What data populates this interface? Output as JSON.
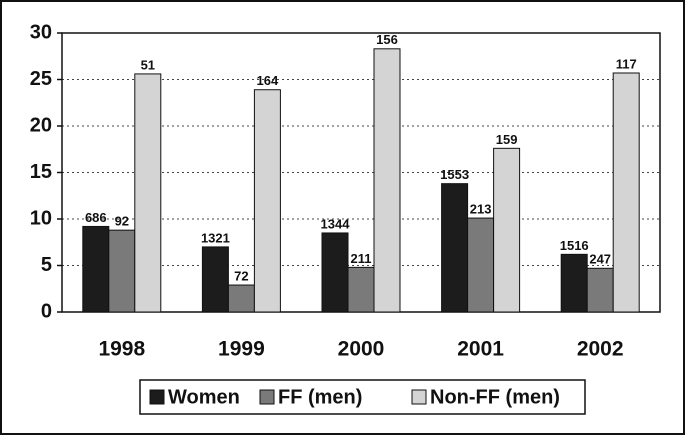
{
  "chart_data": {
    "type": "bar",
    "categories": [
      "1998",
      "1999",
      "2000",
      "2001",
      "2002"
    ],
    "series": [
      {
        "name": "Women",
        "color": "#1c1c1c",
        "values": [
          9.2,
          7.0,
          8.5,
          13.8,
          6.2
        ],
        "bar_labels": [
          686,
          1321,
          1344,
          1553,
          1516
        ]
      },
      {
        "name": "FF (men)",
        "color": "#7a7a7a",
        "values": [
          8.8,
          2.9,
          4.8,
          10.1,
          4.7
        ],
        "bar_labels": [
          92,
          72,
          211,
          213,
          247
        ]
      },
      {
        "name": "Non-FF (men)",
        "color": "#d4d4d4",
        "values": [
          25.6,
          23.9,
          28.3,
          17.6,
          25.7
        ],
        "bar_labels": [
          51,
          164,
          156,
          159,
          117
        ]
      }
    ],
    "ylim": [
      0,
      30
    ],
    "yticks": [
      0,
      5,
      10,
      15,
      20,
      25,
      30
    ],
    "grid": true,
    "legend": "bottom"
  }
}
